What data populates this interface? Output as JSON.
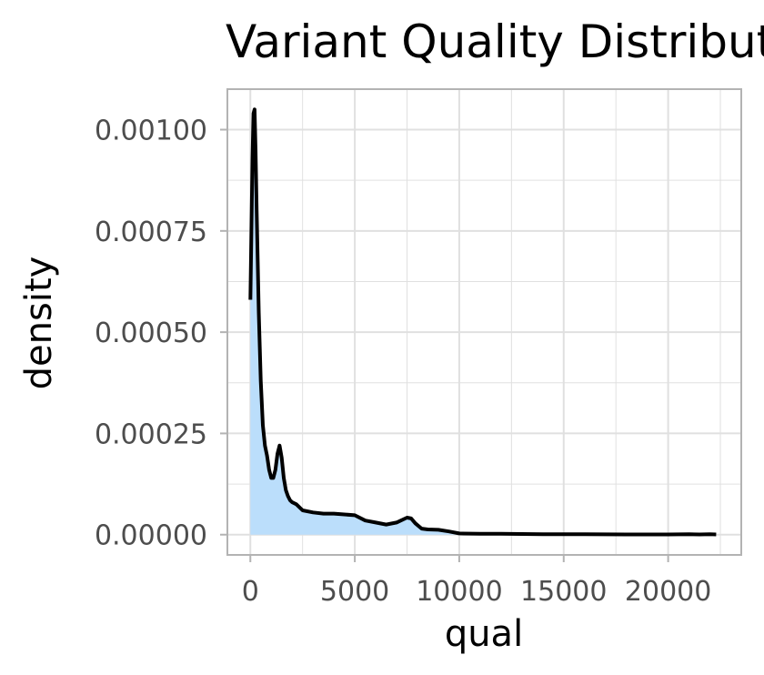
{
  "chart_data": {
    "type": "area",
    "title": "Variant Quality Distribution",
    "xlabel": "qual",
    "ylabel": "density",
    "xlim": [
      -1100,
      23500
    ],
    "ylim": [
      -5e-05,
      0.0011
    ],
    "x_ticks": [
      0,
      5000,
      10000,
      15000,
      20000
    ],
    "x_tick_labels": [
      "0",
      "5000",
      "10000",
      "15000",
      "20000"
    ],
    "x_minor_ticks": [
      2500,
      7500,
      12500,
      17500,
      22500
    ],
    "y_ticks": [
      0,
      0.00025,
      0.0005,
      0.00075,
      0.001
    ],
    "y_tick_labels": [
      "0.00000",
      "0.00025",
      "0.00050",
      "0.00075",
      "0.00100"
    ],
    "y_minor_ticks": [
      0.000125,
      0.000375,
      0.000625,
      0.000875
    ],
    "grid": true,
    "colors": {
      "fill": "#bbdefb",
      "line": "#000000",
      "grid": "#e0e0e0",
      "border": "#b3b3b3"
    },
    "fill_max_x": 10000,
    "series": [
      {
        "name": "density",
        "x": [
          0,
          100,
          150,
          200,
          250,
          300,
          400,
          500,
          600,
          700,
          800,
          900,
          1000,
          1100,
          1200,
          1300,
          1400,
          1500,
          1600,
          1700,
          1800,
          1900,
          2000,
          2200,
          2500,
          3000,
          3500,
          4000,
          4500,
          5000,
          5500,
          6000,
          6500,
          7000,
          7500,
          7700,
          7900,
          8200,
          8500,
          9000,
          9500,
          10000,
          11000,
          12000,
          14000,
          16000,
          18000,
          20000,
          21000,
          21500,
          22000,
          22300
        ],
        "y": [
          0.00058,
          0.00093,
          0.00104,
          0.00105,
          0.00095,
          0.0008,
          0.00055,
          0.00038,
          0.00027,
          0.00022,
          0.000195,
          0.00016,
          0.00014,
          0.00014,
          0.00016,
          0.0002,
          0.00022,
          0.00019,
          0.00014,
          0.00011,
          9.5e-05,
          8.5e-05,
          8e-05,
          7.5e-05,
          6e-05,
          5.5e-05,
          5.2e-05,
          5.2e-05,
          5e-05,
          4.8e-05,
          3.5e-05,
          3e-05,
          2.5e-05,
          3e-05,
          4.2e-05,
          4e-05,
          2.8e-05,
          1.5e-05,
          1.3e-05,
          1.2e-05,
          8e-06,
          3e-06,
          2e-06,
          2e-06,
          1e-06,
          1e-06,
          5e-07,
          5e-07,
          1e-06,
          5e-07,
          1e-06,
          5e-07
        ]
      }
    ]
  }
}
